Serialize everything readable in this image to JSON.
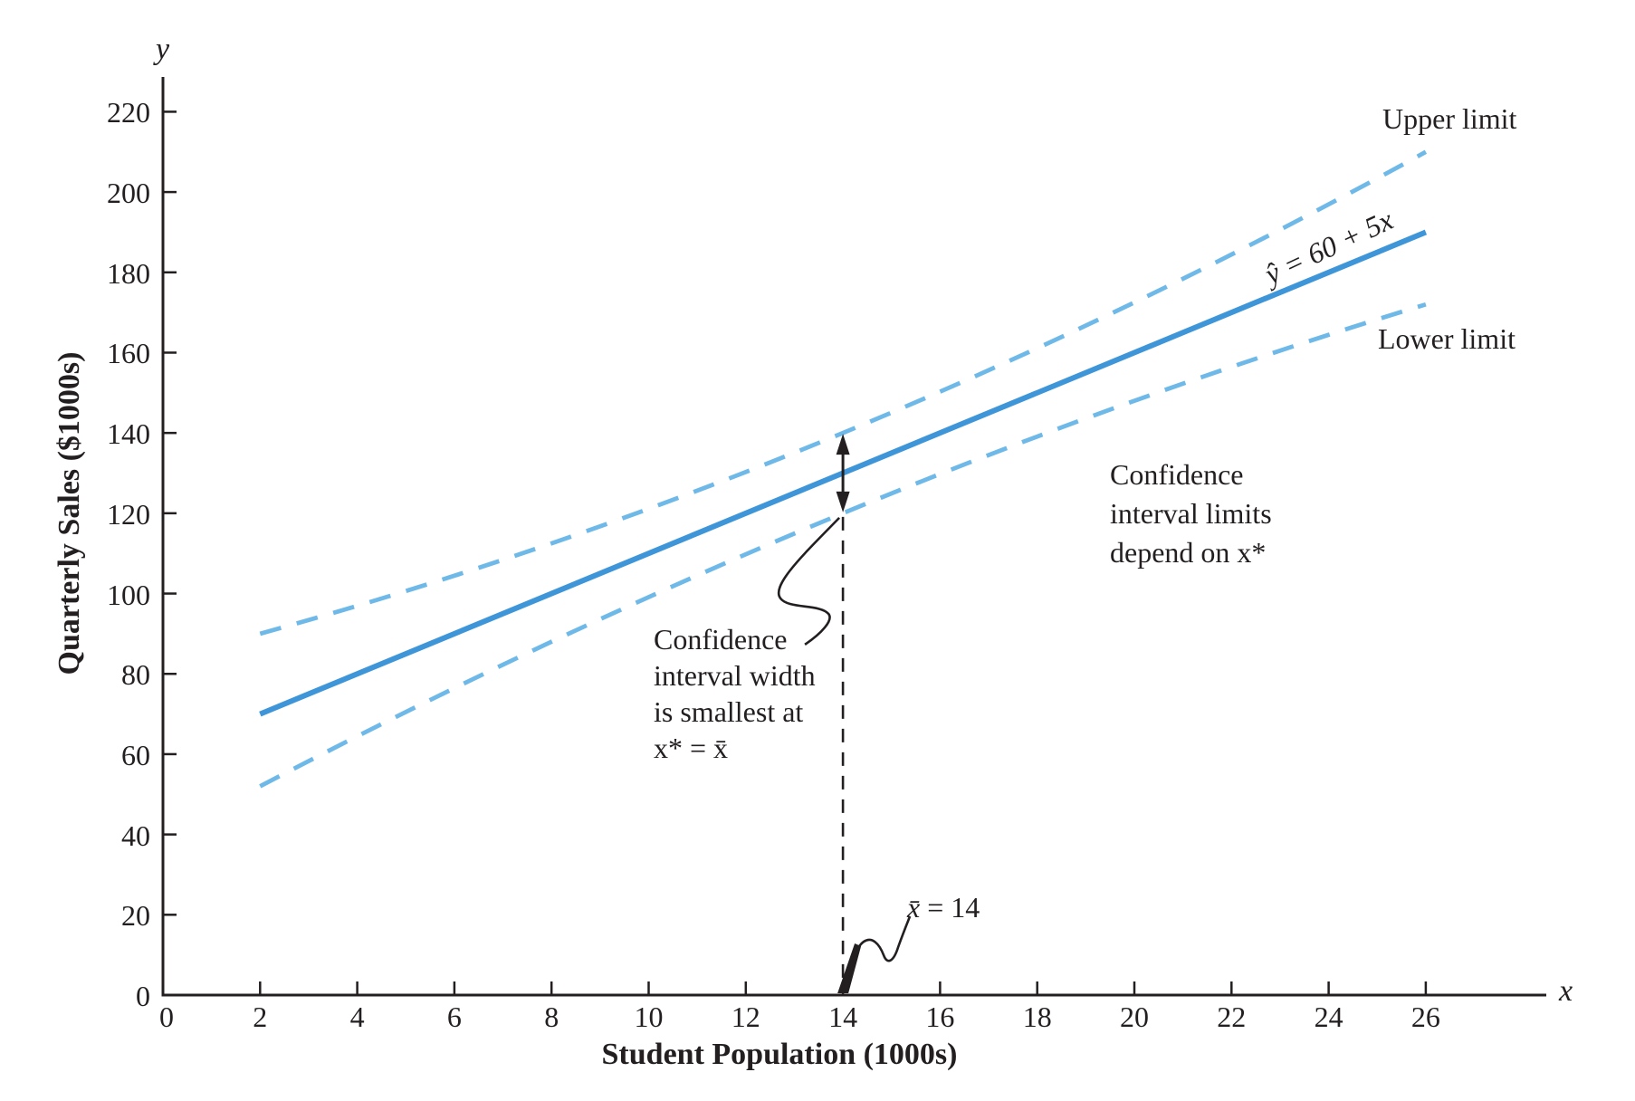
{
  "chart_data": {
    "type": "line",
    "title": "",
    "xlabel": "Student Population (1000s)",
    "ylabel": "Quarterly Sales ($1000s)",
    "x_axis_letter": "x",
    "y_axis_letter": "y",
    "xlim": [
      0,
      28.5
    ],
    "ylim": [
      0,
      229
    ],
    "x_ticks": [
      0,
      2,
      4,
      6,
      8,
      10,
      12,
      14,
      16,
      18,
      20,
      22,
      24,
      26
    ],
    "y_ticks": [
      0,
      20,
      40,
      60,
      80,
      100,
      120,
      140,
      160,
      180,
      200,
      220
    ],
    "grid": false,
    "legend_position": "none",
    "colors": {
      "regression_line": "#3E96D9",
      "confidence_band": "#6FB9E8",
      "axis_and_text": "#231f20"
    },
    "series": [
      {
        "name": "ŷ = 60 + 5x",
        "role": "regression",
        "style": "solid",
        "equation": {
          "intercept": 60,
          "slope": 5
        },
        "x": [
          2,
          26
        ],
        "values": [
          70,
          190
        ]
      },
      {
        "name": "Upper limit",
        "role": "upper-confidence-limit",
        "style": "dashed",
        "x": [
          2,
          14,
          26
        ],
        "values": [
          90,
          140,
          210
        ]
      },
      {
        "name": "Lower limit",
        "role": "lower-confidence-limit",
        "style": "dashed",
        "x": [
          2,
          14,
          26
        ],
        "values": [
          52,
          120,
          172
        ]
      }
    ],
    "xbar": {
      "value": 14,
      "interval_at_xbar": [
        120,
        140
      ]
    },
    "annotations": {
      "upper_limit_label": "Upper limit",
      "lower_limit_label": "Lower limit",
      "equation_label": "ŷ = 60 + 5x",
      "width_note": "Confidence\ninterval width\nis smallest at\nx* = x̄",
      "limits_note": "Confidence\ninterval limits\ndepend on x*",
      "xbar_parts": {
        "var": "x̄",
        "rest": " = 14"
      }
    }
  }
}
